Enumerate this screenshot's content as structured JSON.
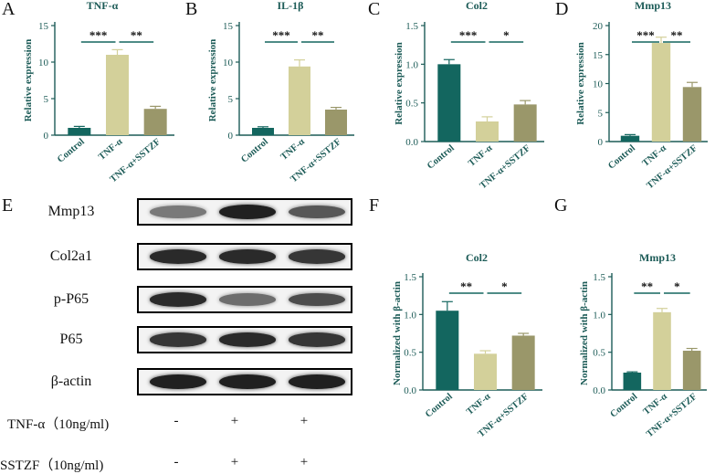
{
  "panels": {
    "A": "A",
    "B": "B",
    "C": "C",
    "D": "D",
    "E": "E",
    "F": "F",
    "G": "G"
  },
  "colors": {
    "control": "#13665f",
    "tnf": "#d3d09a",
    "sstzf": "#9a976a",
    "sig": "#13665f",
    "axis": "#1c5b57"
  },
  "chart_data": [
    {
      "id": "A",
      "type": "bar",
      "title": "TNF-α",
      "ylabel": "Relative expression",
      "categories": [
        "Control",
        "TNF-α",
        "TNF-α+SSTZF"
      ],
      "values": [
        1.0,
        11.0,
        3.6
      ],
      "errors": [
        0.2,
        0.7,
        0.35
      ],
      "ylim": [
        0,
        15
      ],
      "yticks": [
        "0",
        "5",
        "10",
        "15"
      ],
      "sig": [
        "***",
        "**"
      ]
    },
    {
      "id": "B",
      "type": "bar",
      "title": "IL-1β",
      "ylabel": "Relative expression",
      "categories": [
        "Control",
        "TNF-α",
        "TNF-α+SSTZF"
      ],
      "values": [
        1.0,
        9.4,
        3.5
      ],
      "errors": [
        0.15,
        0.9,
        0.3
      ],
      "ylim": [
        0,
        15
      ],
      "yticks": [
        "0",
        "5",
        "10",
        "15"
      ],
      "sig": [
        "***",
        "**"
      ]
    },
    {
      "id": "C",
      "type": "bar",
      "title": "Col2",
      "ylabel": "Relative expression",
      "categories": [
        "Control",
        "TNF-α",
        "TNF-α+SSTZF"
      ],
      "values": [
        1.0,
        0.26,
        0.48
      ],
      "errors": [
        0.06,
        0.06,
        0.05
      ],
      "ylim": [
        0,
        1.5
      ],
      "yticks": [
        "0.0",
        "0.5",
        "1.0",
        "1.5"
      ],
      "sig": [
        "***",
        "*"
      ]
    },
    {
      "id": "D",
      "type": "bar",
      "title": "Mmp13",
      "ylabel": "Relative expression",
      "categories": [
        "Control",
        "TNF-α",
        "TNF-α+SSTZF"
      ],
      "values": [
        1.0,
        17.0,
        9.4
      ],
      "errors": [
        0.2,
        1.0,
        0.8
      ],
      "ylim": [
        0,
        20
      ],
      "yticks": [
        "0",
        "5",
        "10",
        "15",
        "20"
      ],
      "sig": [
        "***",
        "**"
      ]
    },
    {
      "id": "F",
      "type": "bar",
      "title": "Col2",
      "ylabel": "Normalized with β-actin",
      "categories": [
        "Control",
        "TNF-α",
        "TNF-α+SSTZF"
      ],
      "values": [
        1.05,
        0.48,
        0.72
      ],
      "errors": [
        0.12,
        0.04,
        0.03
      ],
      "ylim": [
        0,
        1.5
      ],
      "yticks": [
        "0.0",
        "0.5",
        "1.0",
        "1.5"
      ],
      "sig": [
        "**",
        "*"
      ]
    },
    {
      "id": "G",
      "type": "bar",
      "title": "Mmp13",
      "ylabel": "Normalized with β-actin",
      "categories": [
        "Control",
        "TNF-α",
        "TNF-α+SSTZF"
      ],
      "values": [
        0.23,
        1.03,
        0.52
      ],
      "errors": [
        0.01,
        0.05,
        0.03
      ],
      "ylim": [
        0,
        1.5
      ],
      "yticks": [
        "0.0",
        "0.5",
        "1.0",
        "1.5"
      ],
      "sig": [
        "**",
        "*"
      ]
    }
  ],
  "western": {
    "rows": [
      "Mmp13",
      "Col2a1",
      "p-P65",
      "P65",
      "β-actin"
    ],
    "treatments": [
      {
        "label": "TNF-α（10ng/ml)",
        "marks": [
          "-",
          "+",
          "+"
        ]
      },
      {
        "label": "SSTZF（10ng/ml)",
        "marks": [
          "-",
          "+",
          "+"
        ]
      }
    ]
  }
}
